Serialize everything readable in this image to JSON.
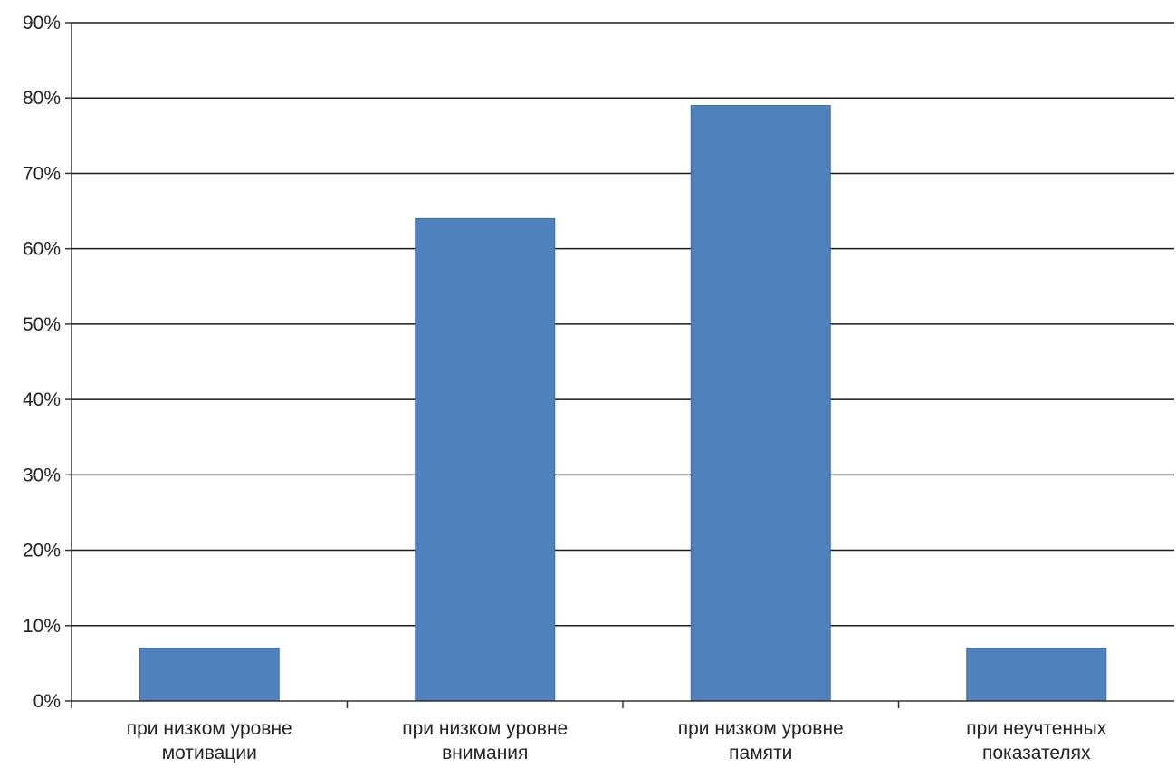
{
  "chart_data": {
    "type": "bar",
    "categories": [
      [
        "при низком уровне",
        "мотивации"
      ],
      [
        "при низком уровне",
        "внимания"
      ],
      [
        "при низком уровне",
        "памяти"
      ],
      [
        "при неучтенных",
        "показателях"
      ]
    ],
    "values": [
      7,
      64,
      79,
      7
    ],
    "ylim": [
      0,
      90
    ],
    "ytick_step": 10,
    "ytick_labels": [
      "0%",
      "10%",
      "20%",
      "30%",
      "40%",
      "50%",
      "60%",
      "70%",
      "80%",
      "90%"
    ],
    "title": "",
    "xlabel": "",
    "ylabel": "",
    "grid": true,
    "legend": "none",
    "colors": {
      "bar": "#4f81bd",
      "bar_edge": "#3e6a9c",
      "grid": "#1a1a1a",
      "axis": "#333333",
      "text": "#222222"
    }
  }
}
